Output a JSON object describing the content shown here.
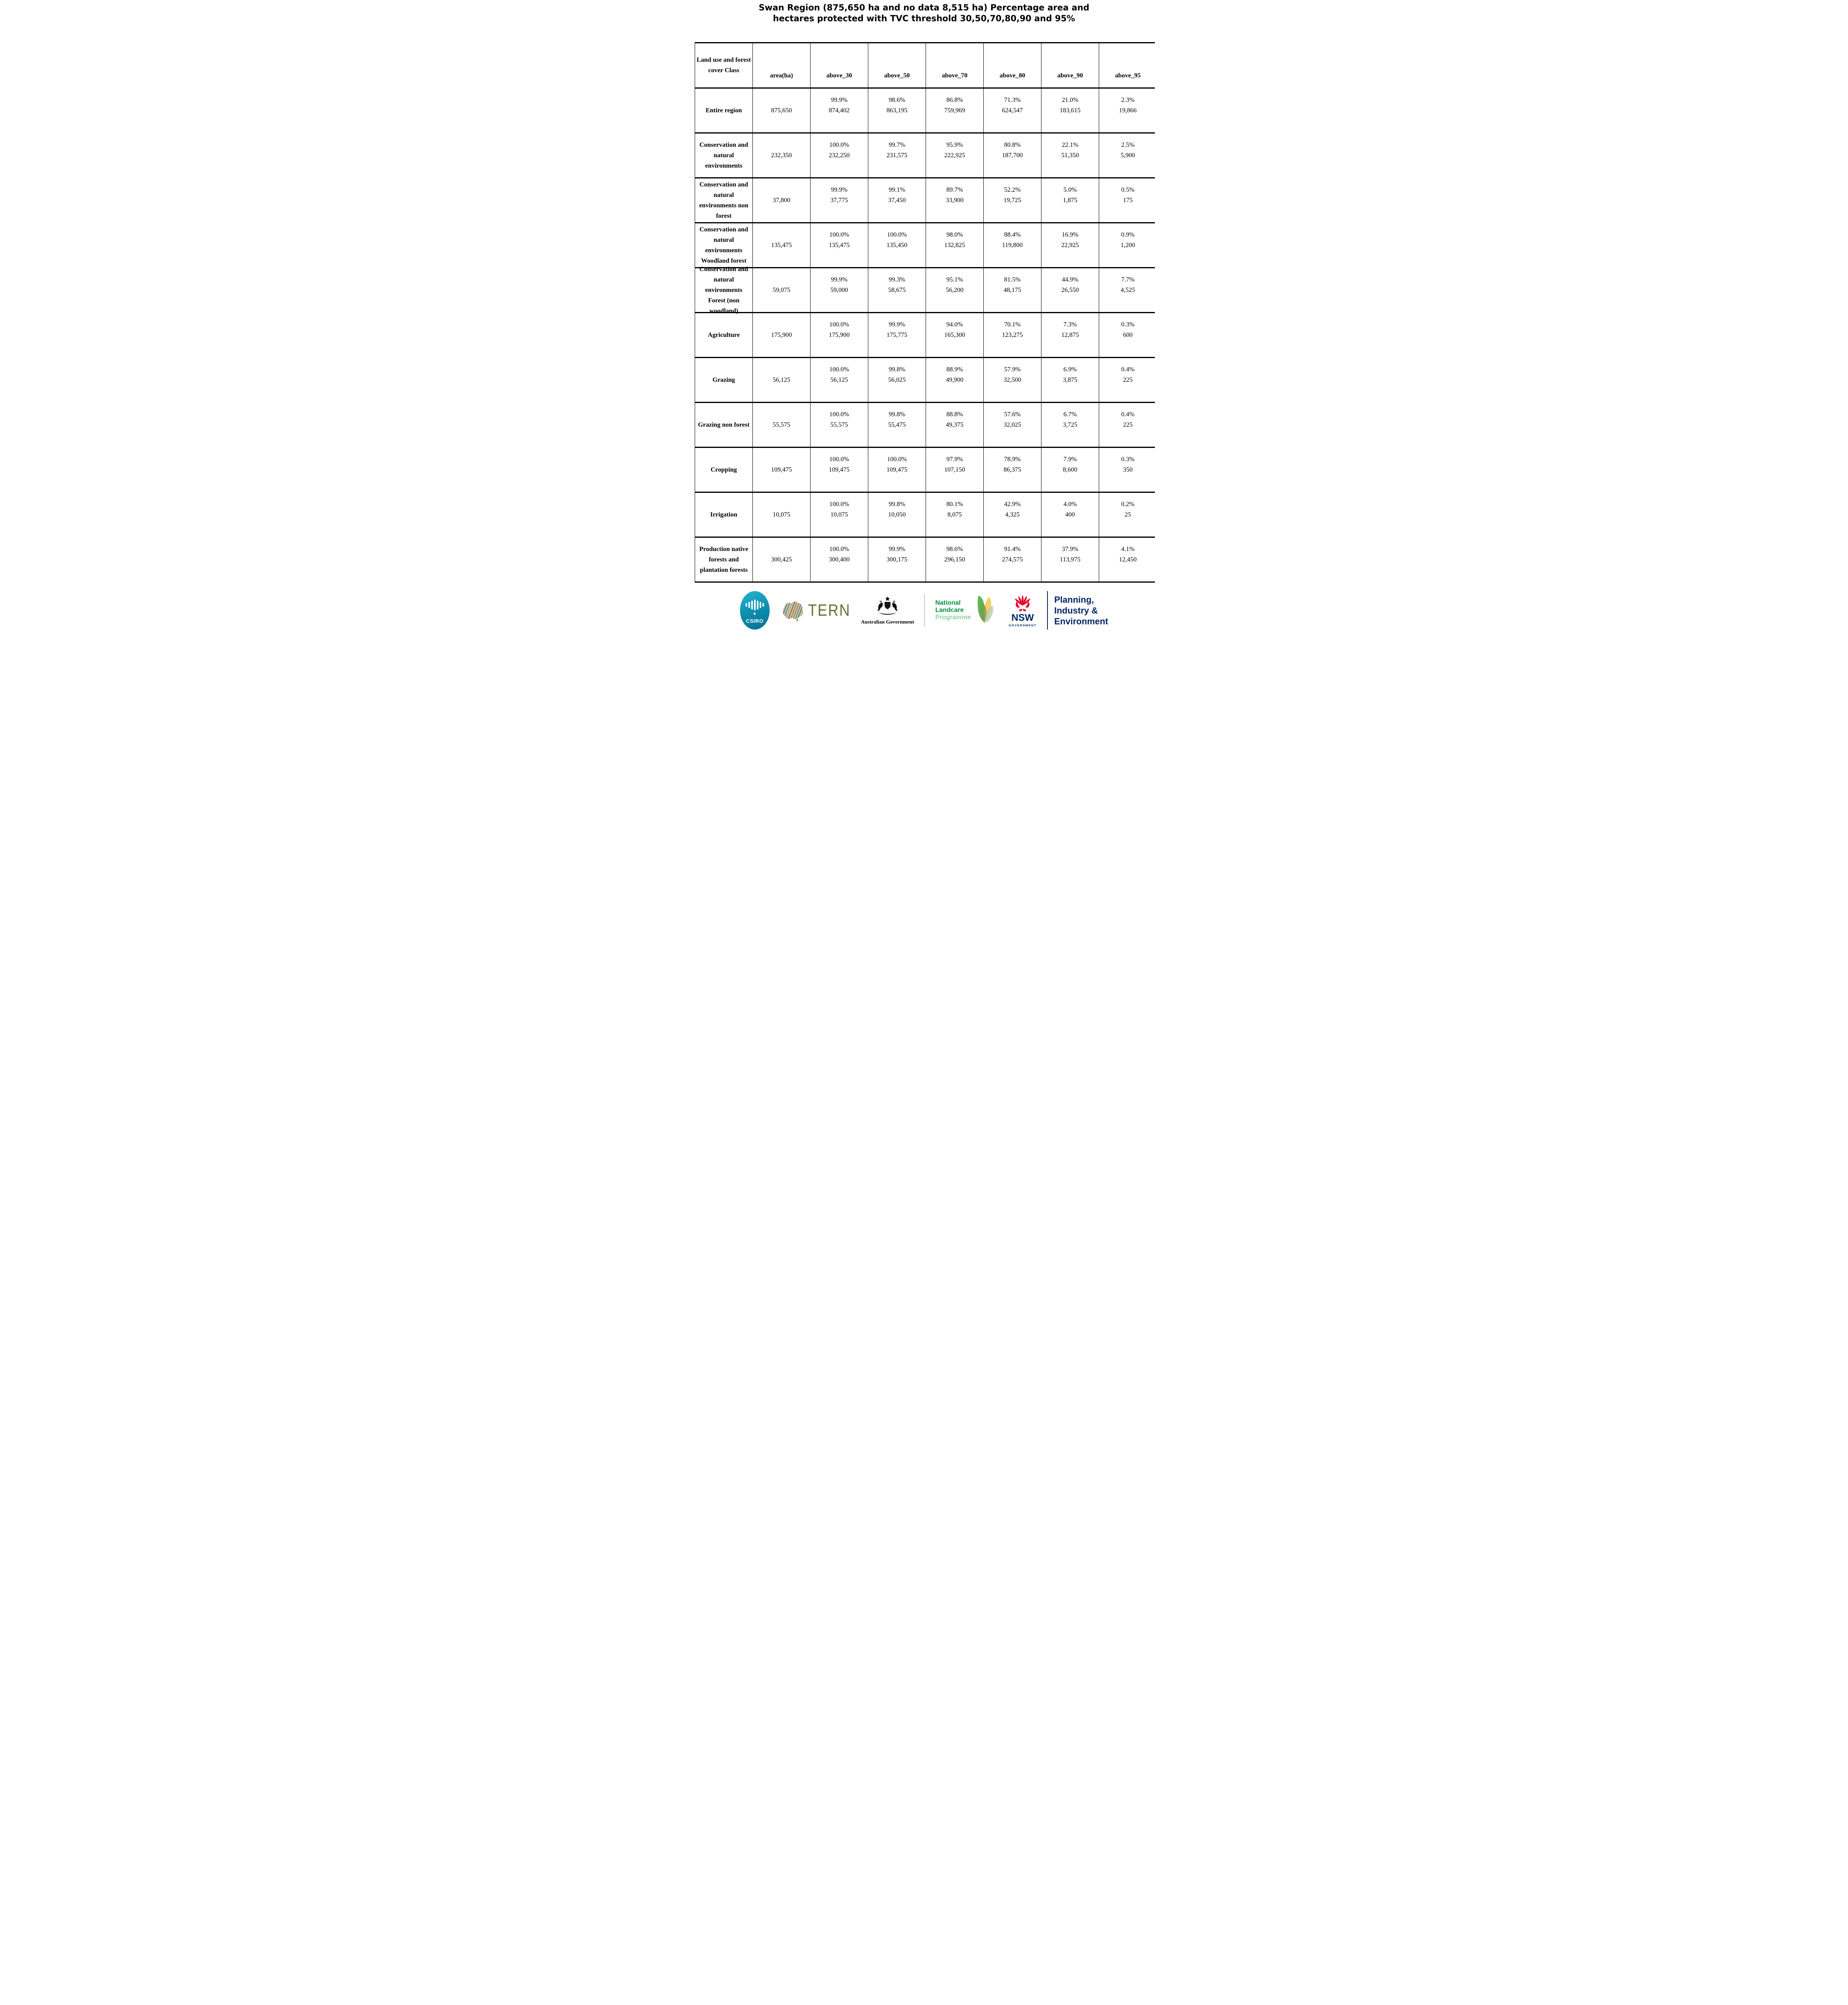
{
  "title": {
    "line1": "Swan Region (875,650 ha and no data 8,515 ha) Percentage area and",
    "line2": "hectares protected with TVC threshold 30,50,70,80,90 and 95%"
  },
  "table": {
    "header": {
      "class_col": "Land use and forest cover Class",
      "cols": [
        "area(ha)",
        "above_30",
        "above_50",
        "above_70",
        "above_80",
        "above_90",
        "above_95"
      ]
    },
    "rows": [
      {
        "label": "Entire region",
        "area": "875,650",
        "values": [
          {
            "pct": "99.9%",
            "ha": "874,402"
          },
          {
            "pct": "98.6%",
            "ha": "863,195"
          },
          {
            "pct": "86.8%",
            "ha": "759,969"
          },
          {
            "pct": "71.3%",
            "ha": "624,547"
          },
          {
            "pct": "21.0%",
            "ha": "183,615"
          },
          {
            "pct": "2.3%",
            "ha": "19,866"
          }
        ]
      },
      {
        "label": "Conservation and natural environments",
        "area": "232,350",
        "values": [
          {
            "pct": "100.0%",
            "ha": "232,250"
          },
          {
            "pct": "99.7%",
            "ha": "231,575"
          },
          {
            "pct": "95.9%",
            "ha": "222,925"
          },
          {
            "pct": "80.8%",
            "ha": "187,700"
          },
          {
            "pct": "22.1%",
            "ha": "51,350"
          },
          {
            "pct": "2.5%",
            "ha": "5,900"
          }
        ]
      },
      {
        "label": "Conservation and natural environments non forest",
        "area": "37,800",
        "values": [
          {
            "pct": "99.9%",
            "ha": "37,775"
          },
          {
            "pct": "99.1%",
            "ha": "37,450"
          },
          {
            "pct": "89.7%",
            "ha": "33,900"
          },
          {
            "pct": "52.2%",
            "ha": "19,725"
          },
          {
            "pct": "5.0%",
            "ha": "1,875"
          },
          {
            "pct": "0.5%",
            "ha": "175"
          }
        ]
      },
      {
        "label": "Conservation and natural environments Woodland forest",
        "area": "135,475",
        "values": [
          {
            "pct": "100.0%",
            "ha": "135,475"
          },
          {
            "pct": "100.0%",
            "ha": "135,450"
          },
          {
            "pct": "98.0%",
            "ha": "132,825"
          },
          {
            "pct": "88.4%",
            "ha": "119,800"
          },
          {
            "pct": "16.9%",
            "ha": "22,925"
          },
          {
            "pct": "0.9%",
            "ha": "1,200"
          }
        ]
      },
      {
        "label": "Conservation and natural environments Forest (non woodland)",
        "area": "59,075",
        "values": [
          {
            "pct": "99.9%",
            "ha": "59,000"
          },
          {
            "pct": "99.3%",
            "ha": "58,675"
          },
          {
            "pct": "95.1%",
            "ha": "56,200"
          },
          {
            "pct": "81.5%",
            "ha": "48,175"
          },
          {
            "pct": "44.9%",
            "ha": "26,550"
          },
          {
            "pct": "7.7%",
            "ha": "4,525"
          }
        ]
      },
      {
        "label": "Agriculture",
        "area": "175,900",
        "values": [
          {
            "pct": "100.0%",
            "ha": "175,900"
          },
          {
            "pct": "99.9%",
            "ha": "175,775"
          },
          {
            "pct": "94.0%",
            "ha": "165,300"
          },
          {
            "pct": "70.1%",
            "ha": "123,275"
          },
          {
            "pct": "7.3%",
            "ha": "12,875"
          },
          {
            "pct": "0.3%",
            "ha": "600"
          }
        ]
      },
      {
        "label": "Grazing",
        "area": "56,125",
        "values": [
          {
            "pct": "100.0%",
            "ha": "56,125"
          },
          {
            "pct": "99.8%",
            "ha": "56,025"
          },
          {
            "pct": "88.9%",
            "ha": "49,900"
          },
          {
            "pct": "57.9%",
            "ha": "32,500"
          },
          {
            "pct": "6.9%",
            "ha": "3,875"
          },
          {
            "pct": "0.4%",
            "ha": "225"
          }
        ]
      },
      {
        "label": "Grazing non forest",
        "area": "55,575",
        "values": [
          {
            "pct": "100.0%",
            "ha": "55,575"
          },
          {
            "pct": "99.8%",
            "ha": "55,475"
          },
          {
            "pct": "88.8%",
            "ha": "49,375"
          },
          {
            "pct": "57.6%",
            "ha": "32,025"
          },
          {
            "pct": "6.7%",
            "ha": "3,725"
          },
          {
            "pct": "0.4%",
            "ha": "225"
          }
        ]
      },
      {
        "label": "Cropping",
        "area": "109,475",
        "values": [
          {
            "pct": "100.0%",
            "ha": "109,475"
          },
          {
            "pct": "100.0%",
            "ha": "109,475"
          },
          {
            "pct": "97.9%",
            "ha": "107,150"
          },
          {
            "pct": "78.9%",
            "ha": "86,375"
          },
          {
            "pct": "7.9%",
            "ha": "8,600"
          },
          {
            "pct": "0.3%",
            "ha": "350"
          }
        ]
      },
      {
        "label": "Irrigation",
        "area": "10,075",
        "values": [
          {
            "pct": "100.0%",
            "ha": "10,075"
          },
          {
            "pct": "99.8%",
            "ha": "10,050"
          },
          {
            "pct": "80.1%",
            "ha": "8,075"
          },
          {
            "pct": "42.9%",
            "ha": "4,325"
          },
          {
            "pct": "4.0%",
            "ha": "400"
          },
          {
            "pct": "0.2%",
            "ha": "25"
          }
        ]
      },
      {
        "label": "Production native forests and plantation forests",
        "area": "300,425",
        "values": [
          {
            "pct": "100.0%",
            "ha": "300,400"
          },
          {
            "pct": "99.9%",
            "ha": "300,175"
          },
          {
            "pct": "98.6%",
            "ha": "296,150"
          },
          {
            "pct": "91.4%",
            "ha": "274,575"
          },
          {
            "pct": "37.9%",
            "ha": "113,975"
          },
          {
            "pct": "4.1%",
            "ha": "12,450"
          }
        ]
      }
    ]
  },
  "footer": {
    "csiro_label": "CSIRO",
    "tern_label": "TERN",
    "aus_gov_label": "Australian Government",
    "landcare_lines": [
      "National",
      "Landcare",
      "Programme"
    ],
    "nsw_label": "NSW",
    "nsw_sub_label": "GOVERNMENT",
    "planning_lines": [
      "Planning,",
      "Industry &",
      "Environment"
    ],
    "colors": {
      "csiro_teal": "#0b8cab",
      "tern_olive": "#65702f",
      "landcare_green": "#00913f",
      "landcare_light_green": "#90d1a7",
      "nsw_red": "#e4002b",
      "nsw_navy": "#002664"
    }
  }
}
